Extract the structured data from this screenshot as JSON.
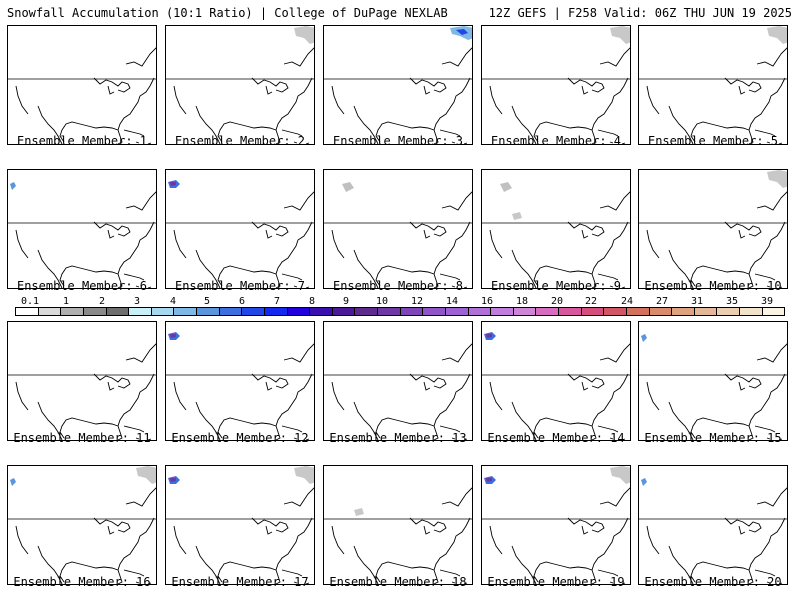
{
  "header": {
    "left": "Snowfall Accumulation (10:1 Ratio) | College of DuPage NEXLAB",
    "right": "12Z GEFS | F258 Valid: 06Z THU JUN 19 2025"
  },
  "colorbar": {
    "labels": [
      "0.1",
      "1",
      "2",
      "3",
      "4",
      "5",
      "6",
      "7",
      "8",
      "9",
      "10",
      "12",
      "14",
      "16",
      "18",
      "20",
      "22",
      "24",
      "27",
      "31",
      "35",
      "39"
    ],
    "colors": [
      "#ffffff",
      "#d9d9d9",
      "#b0b0b0",
      "#8a8a8a",
      "#6e6e6e",
      "#c8f0f8",
      "#a6d8ee",
      "#7fb8e6",
      "#5a96dc",
      "#3c6ee0",
      "#2346e6",
      "#1428f0",
      "#2200dd",
      "#3a0fb0",
      "#4c1a98",
      "#5e2a8e",
      "#6e37a3",
      "#7e45b8",
      "#8e54c8",
      "#9e61d4",
      "#b070d8",
      "#c27cdc",
      "#d084d8",
      "#d86cc0",
      "#d8569e",
      "#d44d7c",
      "#d25566",
      "#d4705e",
      "#d98a6a",
      "#dea27e",
      "#e4b896",
      "#ebcdb0",
      "#f2e2ca",
      "#faf2e2"
    ]
  },
  "panels": [
    {
      "label": "Ensemble Member: 1",
      "snow": []
    },
    {
      "label": "Ensemble Member: 2",
      "snow": [
        "ne-gray"
      ]
    },
    {
      "label": "Ensemble Member: 3",
      "snow": [
        "ne-blue"
      ]
    },
    {
      "label": "Ensemble Member: 4",
      "snow": [
        "ne-gray"
      ]
    },
    {
      "label": "Ensemble Member: 5",
      "snow": [
        "ne-gray"
      ]
    },
    {
      "label": "Ensemble Member: 6",
      "snow": [
        "nw-blue"
      ]
    },
    {
      "label": "Ensemble Member: 7",
      "snow": [
        "nw-purple"
      ]
    },
    {
      "label": "Ensemble Member: 8",
      "snow": [
        "nw-gray"
      ]
    },
    {
      "label": "Ensemble Member: 9",
      "snow": [
        "nw-gray",
        "mid-gray"
      ]
    },
    {
      "label": "Ensemble Member: 10",
      "snow": [
        "ne-gray"
      ]
    },
    {
      "label": "Ensemble Member: 11",
      "snow": []
    },
    {
      "label": "Ensemble Member: 12",
      "snow": [
        "nw-purple"
      ]
    },
    {
      "label": "Ensemble Member: 13",
      "snow": []
    },
    {
      "label": "Ensemble Member: 14",
      "snow": [
        "nw-purple"
      ]
    },
    {
      "label": "Ensemble Member: 15",
      "snow": [
        "nw-blue"
      ]
    },
    {
      "label": "Ensemble Member: 16",
      "snow": [
        "nw-blue",
        "ne-gray"
      ]
    },
    {
      "label": "Ensemble Member: 17",
      "snow": [
        "nw-purple",
        "ne-gray"
      ]
    },
    {
      "label": "Ensemble Member: 18",
      "snow": [
        "mid-gray"
      ]
    },
    {
      "label": "Ensemble Member: 19",
      "snow": [
        "nw-purple",
        "ne-gray"
      ]
    },
    {
      "label": "Ensemble Member: 20",
      "snow": [
        "nw-blue"
      ]
    }
  ]
}
